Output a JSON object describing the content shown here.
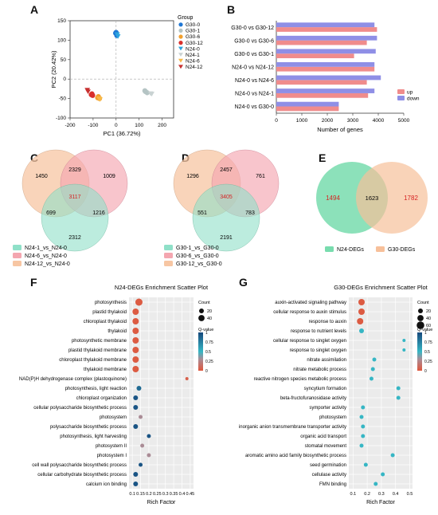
{
  "panel_labels": {
    "A": "A",
    "B": "B",
    "C": "C",
    "D": "D",
    "E": "E",
    "F": "F",
    "G": "G"
  },
  "colors": {
    "G30_0": "#1f77d4",
    "G30_1": "#b5c4c4",
    "G30_6": "#f2a02d",
    "G30_12": "#d9302c",
    "N24_0": "#2ba3de",
    "N24_1": "#c9d2d2",
    "N24_6": "#f7b948",
    "N24_12": "#c73030",
    "up": "#f08c8c",
    "down": "#8f8fe6",
    "venn_a": "#f7c6a3",
    "venn_b": "#f4a6b0",
    "venn_c": "#8fe0c8",
    "venn_n24": "#78dcae",
    "venn_g30": "#f7c09a"
  },
  "chart_data": [
    {
      "id": "A",
      "type": "scatter",
      "title": "",
      "xlabel": "PC1 (36.72%)",
      "ylabel": "PC2 (20.42%)",
      "xlim": [
        -200,
        250
      ],
      "ylim": [
        -100,
        150
      ],
      "xticks": [
        -200,
        -100,
        0,
        100,
        200
      ],
      "yticks": [
        -100,
        -50,
        0,
        50,
        100,
        150
      ],
      "legend_title": "Group",
      "series": [
        {
          "name": "G30-0",
          "shape": "circle",
          "points": [
            [
              -2,
              118
            ],
            [
              3,
              112
            ],
            [
              0,
              120
            ]
          ]
        },
        {
          "name": "G30-1",
          "shape": "circle",
          "points": [
            [
              128,
              -32
            ],
            [
              135,
              -35
            ],
            [
              125,
              -30
            ]
          ]
        },
        {
          "name": "G30-6",
          "shape": "circle",
          "points": [
            [
              -77,
              -45
            ],
            [
              -72,
              -50
            ],
            [
              -80,
              -48
            ]
          ]
        },
        {
          "name": "G30-12",
          "shape": "circle",
          "points": [
            [
              -105,
              -38
            ],
            [
              -102,
              -42
            ],
            [
              -108,
              -40
            ]
          ]
        },
        {
          "name": "N24-0",
          "shape": "triangle",
          "points": [
            [
              5,
              115
            ],
            [
              8,
              110
            ]
          ]
        },
        {
          "name": "N24-1",
          "shape": "triangle",
          "points": [
            [
              150,
              -37
            ],
            [
              155,
              -38
            ]
          ]
        },
        {
          "name": "N24-6",
          "shape": "triangle",
          "points": [
            [
              -74,
              -50
            ],
            [
              -70,
              -52
            ]
          ]
        },
        {
          "name": "N24-12",
          "shape": "triangle",
          "points": [
            [
              -125,
              -28
            ],
            [
              -122,
              -32
            ]
          ]
        }
      ]
    },
    {
      "id": "B",
      "type": "bar",
      "title": "",
      "xlabel": "Number of genes",
      "ylabel": "",
      "xlim": [
        0,
        5000
      ],
      "xticks": [
        0,
        1000,
        2000,
        3000,
        4000,
        5000
      ],
      "categories": [
        "G30-0 vs G30-12",
        "G30-0 vs G30-6",
        "G30-0 vs G30-1",
        "N24-0 vs N24-12",
        "N24-0 vs N24-6",
        "N24-0 vs N24-1",
        "N24-0 vs G30-0"
      ],
      "series": [
        {
          "name": "up",
          "values": [
            3950,
            3550,
            3050,
            3850,
            3550,
            3600,
            2450
          ]
        },
        {
          "name": "down",
          "values": [
            3850,
            3950,
            3900,
            3850,
            4100,
            3850,
            2450
          ]
        }
      ]
    },
    {
      "id": "C",
      "type": "venn",
      "regions": {
        "a_only": "1450",
        "b_only": "1009",
        "c_only": "2312",
        "ab": "2329",
        "ac": "699",
        "bc": "1216",
        "abc": "3117"
      },
      "legend": [
        "N24-1_vs_N24-0",
        "N24-6_vs_N24-0",
        "N24-12_vs_N24-0"
      ]
    },
    {
      "id": "D",
      "type": "venn",
      "regions": {
        "a_only": "1296",
        "b_only": "761",
        "c_only": "2191",
        "ab": "2457",
        "ac": "551",
        "bc": "783",
        "abc": "3405"
      },
      "legend": [
        "G30-1_vs_G30-0",
        "G30-6_vs_G30-0",
        "G30-12_vs_G30-0"
      ]
    },
    {
      "id": "E",
      "type": "venn",
      "regions": {
        "a_only": "1494",
        "ab": "1623",
        "b_only": "1782"
      },
      "legend": [
        "N24-DEGs",
        "G30-DEGs"
      ]
    },
    {
      "id": "F",
      "type": "scatter",
      "title": "N24-DEGs Enrichment Scatter Plot",
      "xlabel": "Rich Factor",
      "xlim": [
        0.08,
        0.47
      ],
      "xticks": [
        "0.1",
        "0.15",
        "0.2",
        "0.25",
        "0.3",
        "0.35",
        "0.4",
        "0.45"
      ],
      "size_legend_title": "Count",
      "size_legend": [
        "20",
        "40"
      ],
      "color_legend_title": "Q-value",
      "color_legend": [
        "1",
        "0.75",
        "0.5",
        "0.25",
        "0"
      ],
      "terms": [
        {
          "label": "photosynthesis",
          "x": 0.14,
          "q": 0.02,
          "size": 9
        },
        {
          "label": "plastid thylakoid",
          "x": 0.12,
          "q": 0.02,
          "size": 8
        },
        {
          "label": "chloroplast thylakoid",
          "x": 0.12,
          "q": 0.02,
          "size": 8
        },
        {
          "label": "thylakoid",
          "x": 0.12,
          "q": 0.02,
          "size": 8
        },
        {
          "label": "photosynthetic membrane",
          "x": 0.12,
          "q": 0.02,
          "size": 8
        },
        {
          "label": "plastid thylakoid membrane",
          "x": 0.12,
          "q": 0.02,
          "size": 8
        },
        {
          "label": "chloroplast thylakoid membrane",
          "x": 0.12,
          "q": 0.02,
          "size": 8
        },
        {
          "label": "thylakoid membrane",
          "x": 0.12,
          "q": 0.02,
          "size": 8
        },
        {
          "label": "NAD(P)H dehydrogenase complex (plastoquinone)",
          "x": 0.43,
          "q": 0.05,
          "size": 4
        },
        {
          "label": "photosynthesis, light reaction",
          "x": 0.14,
          "q": 0.85,
          "size": 6
        },
        {
          "label": "chloroplast organization",
          "x": 0.12,
          "q": 0.95,
          "size": 6
        },
        {
          "label": "cellular polysaccharide biosynthetic process",
          "x": 0.12,
          "q": 0.95,
          "size": 6
        },
        {
          "label": "photosystem",
          "x": 0.15,
          "q": 0.3,
          "size": 5
        },
        {
          "label": "polysaccharide biosynthetic process",
          "x": 0.12,
          "q": 0.95,
          "size": 6
        },
        {
          "label": "photosynthesis, light harvesting",
          "x": 0.2,
          "q": 0.95,
          "size": 5
        },
        {
          "label": "photosystem II",
          "x": 0.16,
          "q": 0.3,
          "size": 5
        },
        {
          "label": "photosystem I",
          "x": 0.2,
          "q": 0.3,
          "size": 5
        },
        {
          "label": "cell wall polysaccharide biosynthetic process",
          "x": 0.15,
          "q": 0.95,
          "size": 5
        },
        {
          "label": "cellular carbohydrate biosynthetic process",
          "x": 0.12,
          "q": 0.95,
          "size": 6
        },
        {
          "label": "calcium ion binding",
          "x": 0.12,
          "q": 0.95,
          "size": 6
        }
      ]
    },
    {
      "id": "G",
      "type": "scatter",
      "title": "G30-DEGs Enrichment Scatter Plot",
      "xlabel": "Rich Factor",
      "xlim": [
        0.07,
        0.52
      ],
      "xticks": [
        "0.1",
        "0.2",
        "0.3",
        "0.4",
        "0.5"
      ],
      "size_legend_title": "Count",
      "size_legend": [
        "20",
        "40",
        "60"
      ],
      "color_legend_title": "Q-value",
      "color_legend": [
        "1",
        "0.75",
        "0.5",
        "0.25",
        "0"
      ],
      "terms": [
        {
          "label": "auxin-activated signaling pathway",
          "x": 0.16,
          "q": 0.02,
          "size": 8
        },
        {
          "label": "cellular response to auxin stimulus",
          "x": 0.16,
          "q": 0.02,
          "size": 8
        },
        {
          "label": "response to auxin",
          "x": 0.15,
          "q": 0.02,
          "size": 8
        },
        {
          "label": "response to nutrient levels",
          "x": 0.16,
          "q": 0.5,
          "size": 6
        },
        {
          "label": "cellular response to singlet oxygen",
          "x": 0.46,
          "q": 0.5,
          "size": 4
        },
        {
          "label": "response to singlet oxygen",
          "x": 0.46,
          "q": 0.5,
          "size": 4
        },
        {
          "label": "nitrate assimilation",
          "x": 0.25,
          "q": 0.5,
          "size": 5
        },
        {
          "label": "nitrate metabolic process",
          "x": 0.24,
          "q": 0.5,
          "size": 5
        },
        {
          "label": "reactive nitrogen species metabolic process",
          "x": 0.23,
          "q": 0.5,
          "size": 5
        },
        {
          "label": "syncytium formation",
          "x": 0.42,
          "q": 0.5,
          "size": 5
        },
        {
          "label": "beta-fructofuranosidase activity",
          "x": 0.42,
          "q": 0.5,
          "size": 5
        },
        {
          "label": "symporter activity",
          "x": 0.17,
          "q": 0.5,
          "size": 5
        },
        {
          "label": "photosystem",
          "x": 0.16,
          "q": 0.5,
          "size": 5
        },
        {
          "label": "inorganic anion transmembrane transporter activity",
          "x": 0.17,
          "q": 0.5,
          "size": 5
        },
        {
          "label": "organic acid transport",
          "x": 0.17,
          "q": 0.5,
          "size": 5
        },
        {
          "label": "stomatal movement",
          "x": 0.16,
          "q": 0.5,
          "size": 5
        },
        {
          "label": "aromatic amino acid family biosynthetic process",
          "x": 0.38,
          "q": 0.5,
          "size": 5
        },
        {
          "label": "seed germination",
          "x": 0.19,
          "q": 0.5,
          "size": 5
        },
        {
          "label": "cellulase activity",
          "x": 0.31,
          "q": 0.5,
          "size": 5
        },
        {
          "label": "FMN binding",
          "x": 0.26,
          "q": 0.5,
          "size": 5
        }
      ]
    }
  ]
}
